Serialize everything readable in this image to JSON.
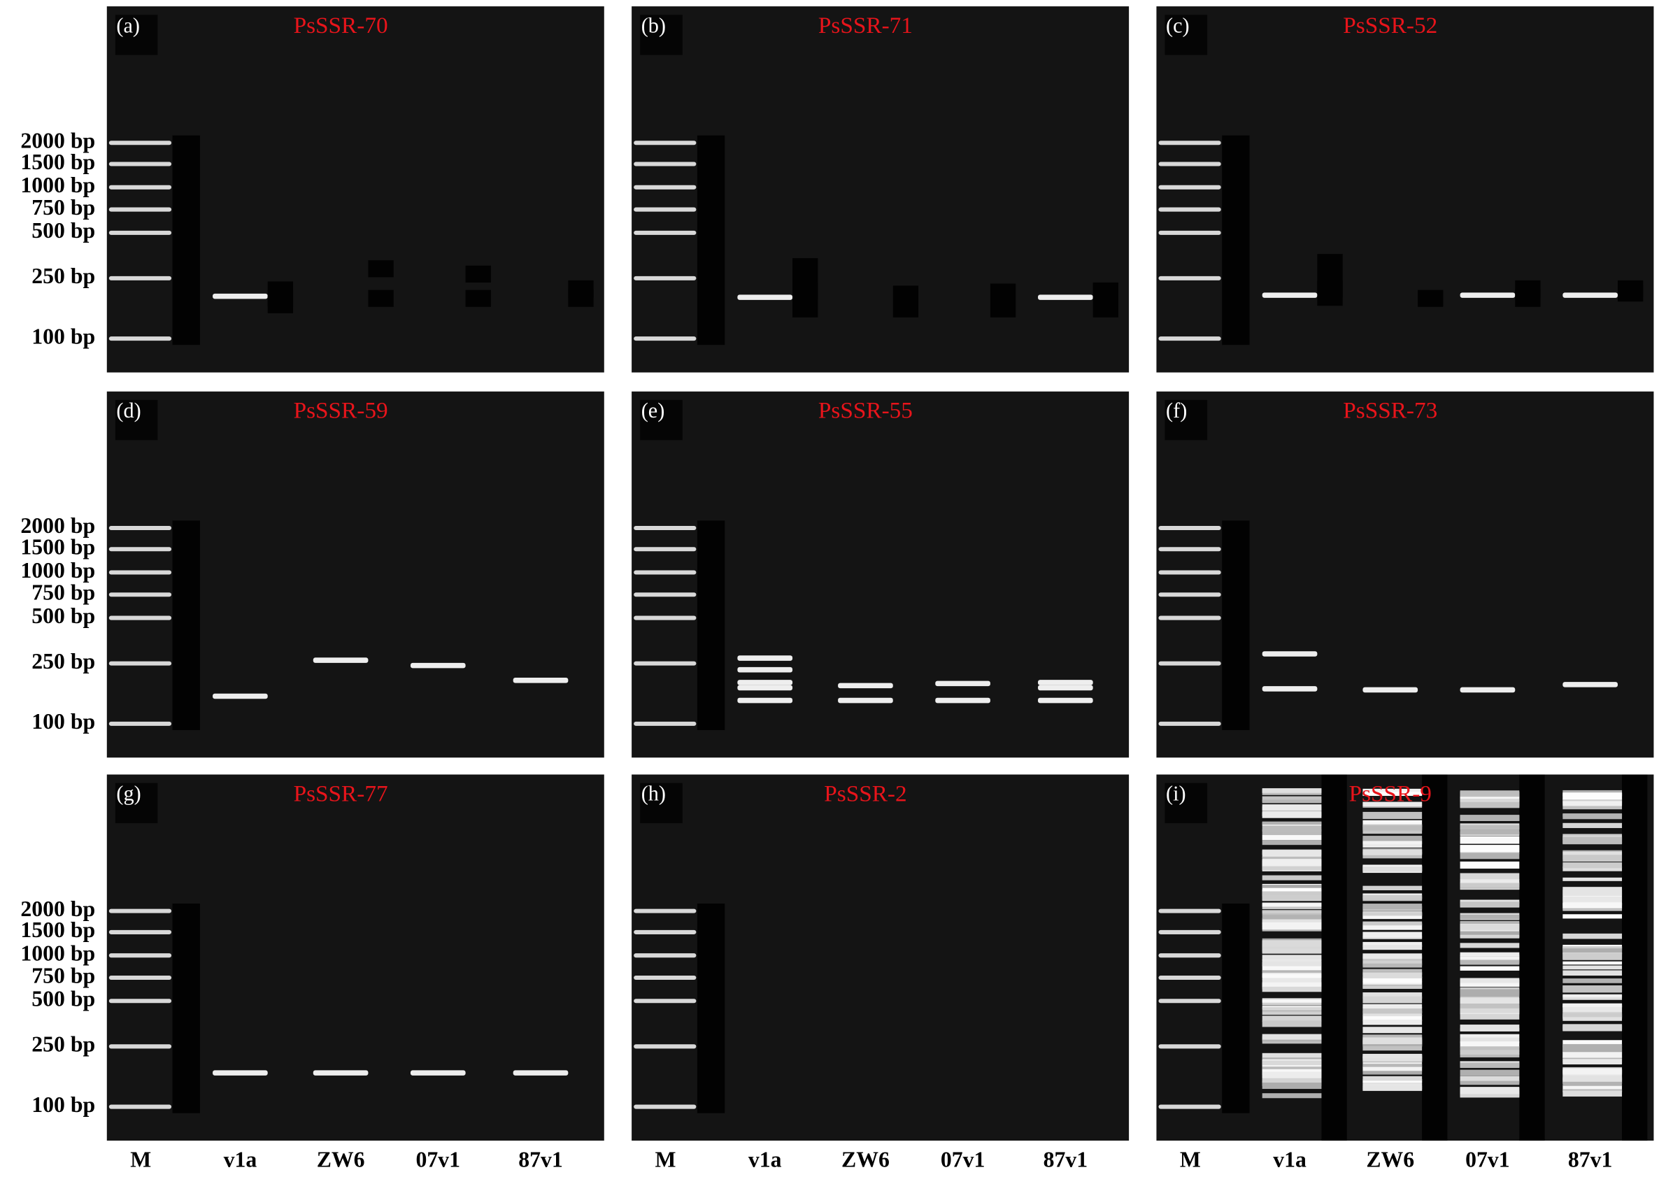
{
  "panels": [
    {
      "letter": "(a)",
      "title": "PsSSR-70"
    },
    {
      "letter": "(b)",
      "title": "PsSSR-71"
    },
    {
      "letter": "(c)",
      "title": "PsSSR-52"
    },
    {
      "letter": "(d)",
      "title": "PsSSR-59"
    },
    {
      "letter": "(e)",
      "title": "PsSSR-55"
    },
    {
      "letter": "(f)",
      "title": "PsSSR-73"
    },
    {
      "letter": "(g)",
      "title": "PsSSR-77"
    },
    {
      "letter": "(h)",
      "title": "PsSSR-2"
    },
    {
      "letter": "(i)",
      "title": "PsSSR-9"
    }
  ],
  "ladder_labels": [
    [
      "2000 bp",
      "1500 bp",
      "1000 bp",
      "750 bp",
      "500 bp",
      "250 bp",
      "100 bp"
    ],
    [
      "2000 bp",
      "1500 bp",
      "1000 bp",
      "750 bp",
      "500 bp",
      "250 bp",
      "100 bp"
    ],
    [
      "2000 bp",
      "1500 bp",
      "1000 bp",
      "750 bp",
      "500 bp",
      "250 bp",
      "100 bp"
    ]
  ],
  "lane_labels": [
    [
      "M",
      "v1a",
      "ZW6",
      "07v1",
      "87v1"
    ],
    [
      "M",
      "v1a",
      "ZW6",
      "07v1",
      "87v1"
    ],
    [
      "M",
      "v1a",
      "ZW6",
      "07v1",
      "87v1"
    ]
  ]
}
